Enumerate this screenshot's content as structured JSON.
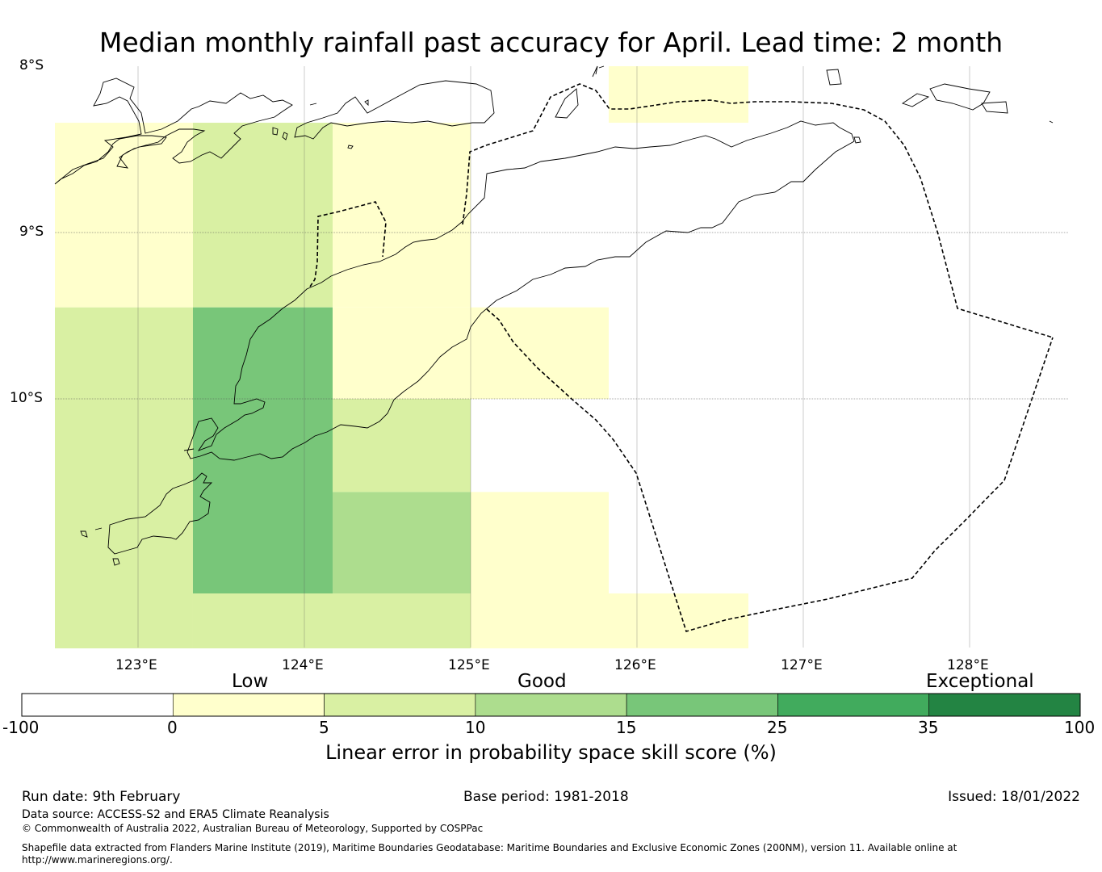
{
  "title": "Median monthly rainfall past accuracy for April. Lead time: 2 month",
  "map": {
    "lat_labels": [
      "8°S",
      "9°S",
      "10°S"
    ],
    "lon_labels": [
      "123°E",
      "124°E",
      "125°E",
      "126°E",
      "127°E",
      "128°E"
    ],
    "lon_range": [
      122.5,
      128.6
    ],
    "lat_range": [
      -11.5,
      -8.0
    ],
    "grid_cells": [
      {
        "lon": [
          122.5,
          123.33
        ],
        "lat": [
          -9.45,
          -8.34
        ],
        "score": 2.5
      },
      {
        "lon": [
          123.33,
          124.17
        ],
        "lat": [
          -9.45,
          -8.34
        ],
        "score": 7.5
      },
      {
        "lon": [
          124.17,
          125.0
        ],
        "lat": [
          -9.45,
          -8.34
        ],
        "score": 2.5
      },
      {
        "lon": [
          122.5,
          123.33
        ],
        "lat": [
          -11.5,
          -9.45
        ],
        "score": 7.5
      },
      {
        "lon": [
          123.33,
          124.17
        ],
        "lat": [
          -11.17,
          -9.45
        ],
        "score": 20
      },
      {
        "lon": [
          123.33,
          124.17
        ],
        "lat": [
          -11.5,
          -11.17
        ],
        "score": 7.5
      },
      {
        "lon": [
          124.17,
          125.0
        ],
        "lat": [
          -10.0,
          -9.45
        ],
        "score": 2.5
      },
      {
        "lon": [
          124.17,
          125.0
        ],
        "lat": [
          -10.56,
          -10.0
        ],
        "score": 7.5
      },
      {
        "lon": [
          124.17,
          125.0
        ],
        "lat": [
          -11.17,
          -10.56
        ],
        "score": 12.5
      },
      {
        "lon": [
          124.17,
          125.0
        ],
        "lat": [
          -11.5,
          -11.17
        ],
        "score": 7.5
      },
      {
        "lon": [
          125.0,
          125.83
        ],
        "lat": [
          -10.0,
          -9.45
        ],
        "score": 2.5
      },
      {
        "lon": [
          125.0,
          125.83
        ],
        "lat": [
          -11.5,
          -10.56
        ],
        "score": 2.5
      },
      {
        "lon": [
          125.83,
          126.67
        ],
        "lat": [
          -11.5,
          -11.17
        ],
        "score": 2.5
      },
      {
        "lon": [
          125.83,
          126.67
        ],
        "lat": [
          -8.34,
          -8.0
        ],
        "score": 2.5
      }
    ]
  },
  "colorbar": {
    "ticks": [
      "-100",
      "0",
      "5",
      "10",
      "15",
      "25",
      "35",
      "100"
    ],
    "bounds": [
      -100,
      0,
      5,
      10,
      15,
      25,
      35,
      100
    ],
    "colors": [
      "#ffffff",
      "#ffffcc",
      "#d9f0a3",
      "#addd8e",
      "#78c679",
      "#41ab5d",
      "#238443"
    ],
    "categories": [
      "Low",
      "Good",
      "Exceptional"
    ],
    "label": "Linear error in probability space skill score (%)"
  },
  "footer": {
    "run_date": "Run date: 9th February",
    "base_period": "Base period: 1981-2018",
    "issued": "Issued: 18/01/2022",
    "data_source": "Data source: ACCESS-S2 and ERA5 Climate Reanalysis",
    "copyright": "© Commonwealth of Australia 2022, Australian Bureau of Meteorology, Supported by COSPPac",
    "shapefile_line1": "Shapefile data extracted from Flanders Marine Institute (2019), Maritime Boundaries Geodatabase: Maritime Boundaries and Exclusive Economic Zones (200NM), version 11. Available online at",
    "shapefile_line2": "http://www.marineregions.org/."
  }
}
